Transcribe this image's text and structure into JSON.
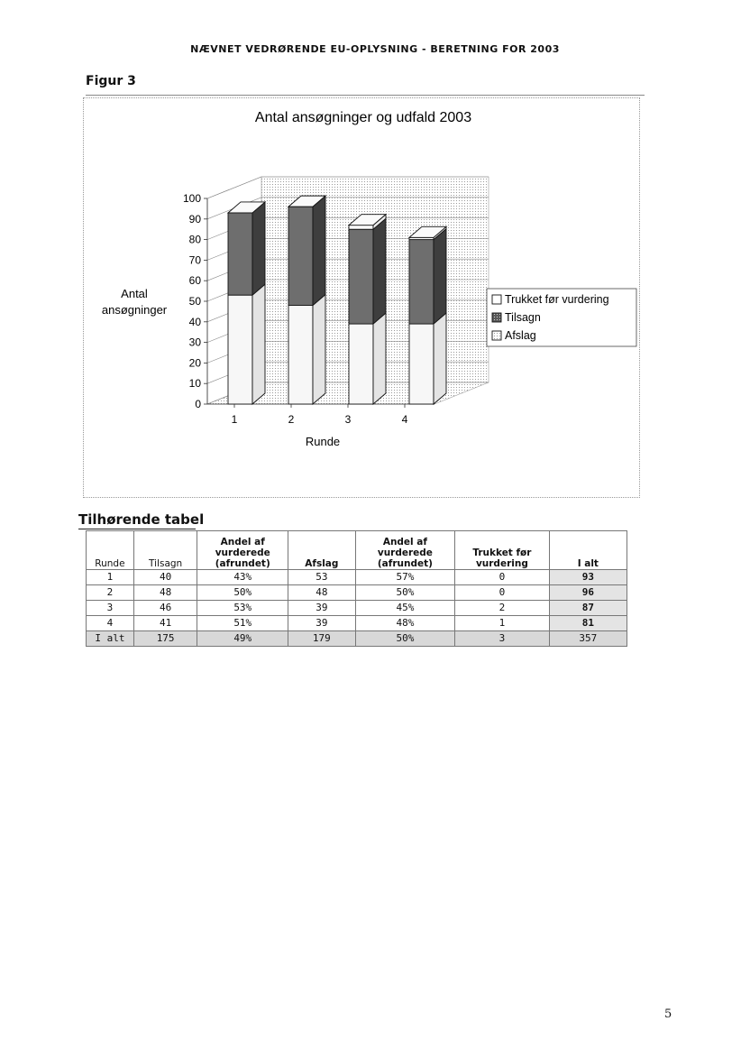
{
  "header": "NÆVNET VEDRØRENDE EU-OPLYSNING - BERETNING FOR 2003",
  "figure_label": "Figur 3",
  "chart_data": {
    "type": "bar",
    "stacked": true,
    "three_d": true,
    "title": "Antal ansøgninger og udfald 2003",
    "xlabel": "Runde",
    "ylabel": "Antal ansøgninger",
    "categories": [
      "1",
      "2",
      "3",
      "4"
    ],
    "ylim": [
      0,
      100
    ],
    "yticks": [
      0,
      10,
      20,
      30,
      40,
      50,
      60,
      70,
      80,
      90,
      100
    ],
    "legend_position": "right",
    "series": [
      {
        "name": "Afslag",
        "values": [
          53,
          48,
          39,
          39
        ],
        "fill": "#f7f7f7"
      },
      {
        "name": "Tilsagn",
        "values": [
          40,
          48,
          46,
          41
        ],
        "fill": "#6e6e6e"
      },
      {
        "name": "Trukket før vurdering",
        "values": [
          0,
          0,
          2,
          1
        ],
        "fill": "#ffffff"
      }
    ],
    "legend": [
      "Trukket før vurdering",
      "Tilsagn",
      "Afslag"
    ]
  },
  "table": {
    "title": "Tilhørende tabel",
    "headers": [
      "Runde",
      "Tilsagn",
      "Andel af vurderede (afrundet)",
      "Afslag",
      "Andel af vurderede (afrundet)",
      "Trukket før vurdering",
      "I alt"
    ],
    "rows": [
      [
        "1",
        "40",
        "43%",
        "53",
        "57%",
        "0",
        "93"
      ],
      [
        "2",
        "48",
        "50%",
        "48",
        "50%",
        "0",
        "96"
      ],
      [
        "3",
        "46",
        "53%",
        "39",
        "45%",
        "2",
        "87"
      ],
      [
        "4",
        "41",
        "51%",
        "39",
        "48%",
        "1",
        "81"
      ],
      [
        "I alt",
        "175",
        "49%",
        "179",
        "50%",
        "3",
        "357"
      ]
    ]
  },
  "page_number": "5"
}
